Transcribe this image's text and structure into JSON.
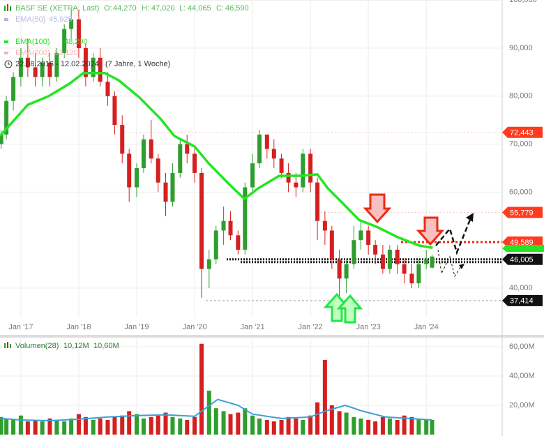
{
  "chart_data": [
    {
      "type": "candlestick",
      "title": "BASF SE (XETRA, Last)",
      "quote": [
        {
          "name": "O:",
          "value": 44.27,
          "label": "44,270"
        },
        {
          "name": "H:",
          "value": 47.02,
          "label": "47,020"
        },
        {
          "name": "L:",
          "value": 44.065,
          "label": "44,065"
        },
        {
          "name": "C:",
          "value": 46.59,
          "label": "46,590"
        }
      ],
      "period": "22.08.2016 - 12.02.2024",
      "period_note": "(7 Jahre, 1 Woche)",
      "up_color": "#2e9e2e",
      "down_color": "#d42020",
      "x": [
        2016.66,
        2016.75,
        2016.87,
        2017.0,
        2017.12,
        2017.25,
        2017.37,
        2017.5,
        2017.62,
        2017.75,
        2017.87,
        2018.0,
        2018.12,
        2018.25,
        2018.37,
        2018.5,
        2018.62,
        2018.75,
        2018.87,
        2019.0,
        2019.12,
        2019.25,
        2019.37,
        2019.5,
        2019.62,
        2019.75,
        2019.87,
        2020.0,
        2020.12,
        2020.25,
        2020.37,
        2020.5,
        2020.62,
        2020.75,
        2020.87,
        2021.0,
        2021.12,
        2021.25,
        2021.37,
        2021.5,
        2021.62,
        2021.75,
        2021.87,
        2022.0,
        2022.12,
        2022.25,
        2022.37,
        2022.5,
        2022.62,
        2022.75,
        2022.87,
        2023.0,
        2023.12,
        2023.25,
        2023.37,
        2023.5,
        2023.62,
        2023.75,
        2023.87,
        2024.0,
        2024.1
      ],
      "open": [
        70,
        72,
        79,
        84,
        88,
        86,
        84,
        87,
        84,
        89,
        94,
        96,
        90,
        84,
        88,
        83,
        80,
        74,
        68,
        61,
        65,
        71,
        67,
        62,
        58,
        64,
        70,
        68,
        64,
        44,
        46,
        52,
        54,
        51,
        48,
        61,
        66,
        72,
        69,
        67,
        64,
        62,
        61,
        68,
        62,
        54,
        52,
        46,
        42,
        45,
        50,
        52,
        49,
        47,
        44,
        48,
        45,
        43,
        41,
        45,
        44.27
      ],
      "high": [
        73,
        80,
        85,
        90,
        92,
        89,
        88,
        89,
        90,
        95,
        98,
        98,
        91,
        89,
        90,
        85,
        81,
        76,
        69,
        66,
        72,
        75,
        68,
        64,
        66,
        71,
        72,
        69,
        65,
        48,
        53,
        57,
        56,
        52,
        62,
        68,
        73,
        72,
        71,
        68,
        66,
        64,
        69,
        69,
        63,
        56,
        53,
        48,
        46,
        53,
        54,
        53,
        50,
        49,
        49,
        49,
        46,
        45,
        46,
        48,
        47.02
      ],
      "low": [
        69,
        71,
        77,
        82,
        84,
        82,
        82,
        82,
        83,
        88,
        92,
        88,
        82,
        83,
        82,
        78,
        72,
        66,
        58,
        59,
        64,
        66,
        60,
        55,
        57,
        63,
        66,
        62,
        38,
        40,
        45,
        49,
        50,
        47,
        47,
        60,
        65,
        67,
        65,
        63,
        60,
        59,
        60,
        60,
        50,
        49,
        44,
        37.4,
        39,
        44,
        48,
        47,
        45,
        43,
        43,
        43,
        41,
        40,
        40,
        44,
        44.065
      ],
      "close": [
        72,
        79,
        84,
        88,
        86,
        84,
        87,
        84,
        89,
        94,
        96,
        90,
        84,
        88,
        83,
        80,
        74,
        68,
        61,
        65,
        71,
        67,
        62,
        58,
        64,
        70,
        68,
        64,
        44,
        46,
        52,
        54,
        51,
        48,
        61,
        66,
        72,
        69,
        67,
        64,
        62,
        61,
        68,
        62,
        54,
        52,
        46,
        42,
        45,
        50,
        52,
        49,
        47,
        44,
        48,
        45,
        43,
        41,
        45,
        46,
        46.59
      ],
      "indicators": [
        {
          "name": "EMA(50)",
          "label": "45,925",
          "last": 45.925,
          "color": "#b8b8e6"
        },
        {
          "name": "EMA(100)",
          "label": "48,290",
          "last": 48.29,
          "color": "#22e622",
          "x": [
            2016.64,
            2017.12,
            2017.48,
            2017.84,
            2018.08,
            2018.45,
            2018.69,
            2019.05,
            2019.41,
            2019.65,
            2020.0,
            2020.25,
            2020.61,
            2020.86,
            2021.1,
            2021.46,
            2021.82,
            2022.12,
            2022.3,
            2022.54,
            2022.84,
            2023.14,
            2023.51,
            2023.87,
            2024.11
          ],
          "values": [
            71.7,
            78.2,
            80,
            82.6,
            84.8,
            84.8,
            83.3,
            79.7,
            75.3,
            71.7,
            69.5,
            65.9,
            61.5,
            58.6,
            60.8,
            63.4,
            63.4,
            63.7,
            60.8,
            57.9,
            54.2,
            52.8,
            50.6,
            48.9,
            48.4
          ]
        },
        {
          "name": "EMA(200)",
          "label": "53,120",
          "last": 53.12,
          "color": "#f4b4b4"
        }
      ],
      "levels": [
        {
          "value": 72.443,
          "label": "72,443",
          "color": "#ff3b1f"
        },
        {
          "value": 55.779,
          "label": "55,779",
          "color": "#ff3b1f"
        },
        {
          "value": 49.589,
          "label": "49,589",
          "color": "#ff3b1f"
        },
        {
          "value": 46.005,
          "label": "46,005",
          "color": "#111111"
        },
        {
          "value": 37.414,
          "label": "37,414",
          "color": "#111111"
        }
      ],
      "xlim": [
        2016.64,
        2025.31
      ],
      "xticks": [
        {
          "value": 2017,
          "label": "Jan '17"
        },
        {
          "value": 2018,
          "label": "Jan '18"
        },
        {
          "value": 2019,
          "label": "Jan '19"
        },
        {
          "value": 2020,
          "label": "Jan '20"
        },
        {
          "value": 2021,
          "label": "Jan '21"
        },
        {
          "value": 2022,
          "label": "Jan '22"
        },
        {
          "value": 2023,
          "label": "Jan '23"
        },
        {
          "value": 2024,
          "label": "Jan '24"
        }
      ],
      "ylim": [
        33.9,
        100.03
      ],
      "yticks": [
        {
          "value": 40,
          "label": "40,000"
        },
        {
          "value": 60,
          "label": "60,000"
        },
        {
          "value": 70,
          "label": "70,000"
        },
        {
          "value": 80,
          "label": "80,000"
        },
        {
          "value": 90,
          "label": "90,000"
        },
        {
          "value": 100,
          "label": "100,000"
        }
      ],
      "grid": true
    },
    {
      "type": "volume",
      "title": "Volumen(28)",
      "readouts": [
        {
          "value": 10.12,
          "label": "10,12M"
        },
        {
          "value": 10.6,
          "label": "10,60M"
        }
      ],
      "values": [
        12,
        11,
        10,
        13,
        9,
        10,
        9,
        11,
        10,
        9,
        11,
        14,
        12,
        10,
        11,
        10,
        12,
        13,
        16,
        14,
        11,
        12,
        13,
        15,
        12,
        11,
        10,
        12,
        62,
        30,
        18,
        16,
        14,
        15,
        18,
        13,
        11,
        10,
        9,
        10,
        12,
        11,
        10,
        13,
        22,
        51,
        20,
        16,
        15,
        12,
        11,
        10,
        9,
        12,
        11,
        10,
        13,
        12,
        11,
        10,
        10
      ],
      "ma_color": "#3aa0d8",
      "ma_x": [
        2016.66,
        2017.0,
        2017.5,
        2018.0,
        2018.5,
        2019.0,
        2019.5,
        2020.0,
        2020.12,
        2020.4,
        2020.75,
        2021.0,
        2021.5,
        2022.0,
        2022.25,
        2022.6,
        2022.9,
        2023.3,
        2023.7,
        2024.1
      ],
      "ma_values": [
        11,
        10,
        9.5,
        10.5,
        12,
        13,
        13.5,
        12.5,
        16,
        24,
        20,
        14,
        11,
        12,
        16,
        20,
        16,
        12,
        11,
        10
      ],
      "ylim": [
        0,
        65.7
      ],
      "yticks": [
        {
          "value": 20,
          "label": "20,00M"
        },
        {
          "value": 40,
          "label": "40,00M"
        },
        {
          "value": 60,
          "label": "60,00M"
        }
      ]
    }
  ]
}
